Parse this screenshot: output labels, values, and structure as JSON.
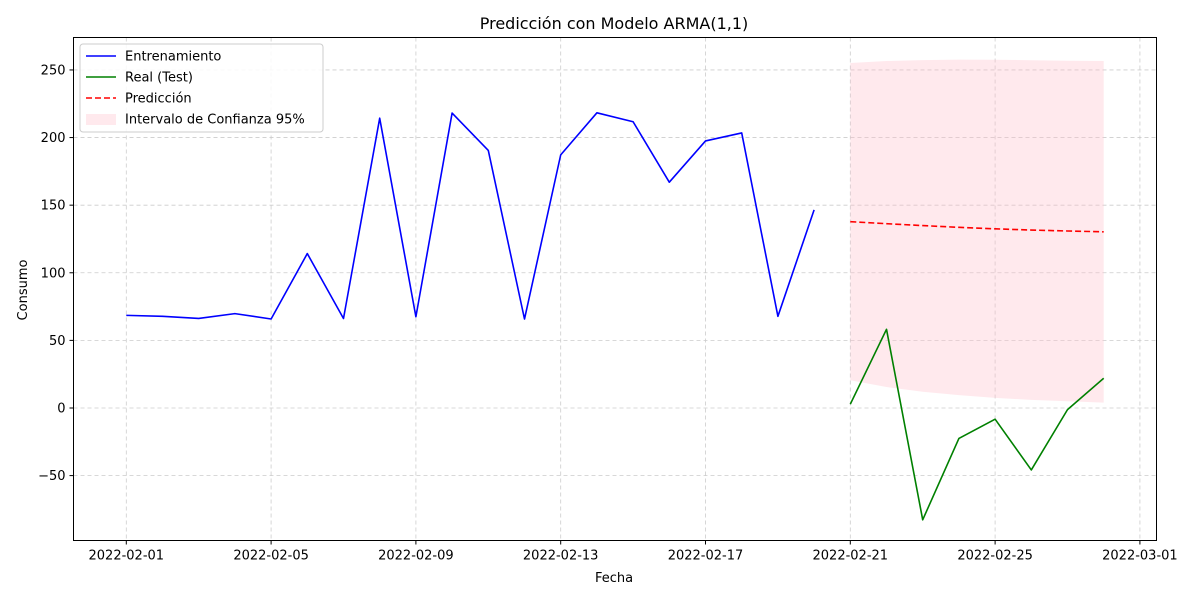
{
  "chart_data": {
    "type": "line",
    "title": "Predicción con Modelo ARMA(1,1)",
    "xlabel": "Fecha",
    "ylabel": "Consumo",
    "xlim": [
      "2022-01-30T13:00",
      "2022-03-01T11:00"
    ],
    "ylim": [
      -98,
      274
    ],
    "grid": true,
    "legend_position": "top-left",
    "x_ticks": [
      "2022-02-01",
      "2022-02-05",
      "2022-02-09",
      "2022-02-13",
      "2022-02-17",
      "2022-02-21",
      "2022-02-25",
      "2022-03-01"
    ],
    "y_ticks": [
      -50,
      0,
      50,
      100,
      150,
      200,
      250
    ],
    "y_tick_labels": [
      "−50",
      "0",
      "50",
      "100",
      "150",
      "200",
      "250"
    ],
    "series": [
      {
        "name": "Entrenamiento",
        "style": "solid",
        "color": "#0000ff",
        "x": [
          "2022-02-01",
          "2022-02-02",
          "2022-02-03",
          "2022-02-04",
          "2022-02-05",
          "2022-02-06",
          "2022-02-07",
          "2022-02-08",
          "2022-02-09",
          "2022-02-10",
          "2022-02-11",
          "2022-02-12",
          "2022-02-13",
          "2022-02-14",
          "2022-02-15",
          "2022-02-16",
          "2022-02-17",
          "2022-02-18",
          "2022-02-19",
          "2022-02-20"
        ],
        "values": [
          68.5,
          67.8,
          66.2,
          69.8,
          65.8,
          114.2,
          66.2,
          214.3,
          67.5,
          218.1,
          190.5,
          65.8,
          187.2,
          218.3,
          211.7,
          167.0,
          197.5,
          203.4,
          67.8,
          146.5
        ]
      },
      {
        "name": "Real (Test)",
        "style": "solid",
        "color": "#008000",
        "x": [
          "2022-02-21",
          "2022-02-22",
          "2022-02-23",
          "2022-02-24",
          "2022-02-25",
          "2022-02-26",
          "2022-02-27",
          "2022-02-28"
        ],
        "values": [
          2.8,
          58.2,
          -82.7,
          -22.5,
          -8.3,
          -45.8,
          -1.2,
          22.0
        ]
      },
      {
        "name": "Predicción",
        "style": "dashed",
        "color": "#ff0000",
        "x": [
          "2022-02-21",
          "2022-02-22",
          "2022-02-23",
          "2022-02-24",
          "2022-02-25",
          "2022-02-26",
          "2022-02-27",
          "2022-02-28"
        ],
        "values": [
          137.8,
          136.3,
          134.9,
          133.6,
          132.5,
          131.6,
          130.9,
          130.3
        ]
      },
      {
        "name": "Intervalo de Confianza 95%",
        "style": "band",
        "color": "#ffc0cb",
        "x": [
          "2022-02-21",
          "2022-02-22",
          "2022-02-23",
          "2022-02-24",
          "2022-02-25",
          "2022-02-26",
          "2022-02-27",
          "2022-02-28"
        ],
        "lower": [
          20.5,
          15.5,
          12.0,
          9.5,
          7.5,
          6.0,
          5.0,
          4.0
        ],
        "upper": [
          255.1,
          256.6,
          257.3,
          257.6,
          257.5,
          257.2,
          256.8,
          256.6
        ]
      }
    ]
  }
}
